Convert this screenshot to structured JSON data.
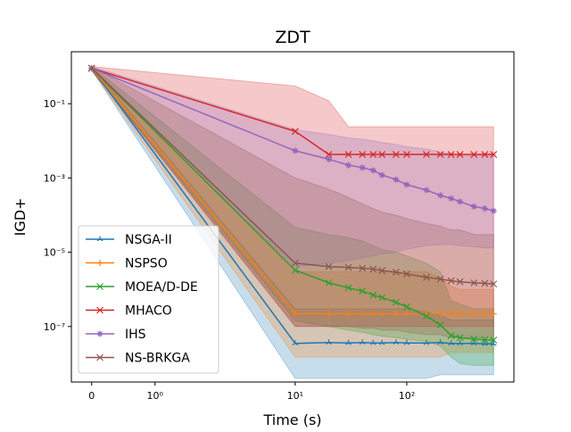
{
  "chart_data": {
    "type": "line",
    "title": "ZDT",
    "x_label": "Time (s)",
    "y_label": "IGD+",
    "x": [
      0,
      10,
      20,
      30,
      40,
      50,
      60,
      80,
      100,
      150,
      200,
      250,
      300,
      400,
      500,
      600
    ],
    "xscale": "symlog",
    "yscale": "log",
    "xlim": [
      -0.32,
      912
    ],
    "ylim": [
      3.2e-09,
      2.5
    ],
    "xticks": [
      0,
      {
        "value": 1,
        "label": "10⁰"
      },
      {
        "value": 10,
        "label": "10¹"
      },
      {
        "value": 100,
        "label": "10²"
      }
    ],
    "yticks": [
      {
        "value": 0.1,
        "label": "10⁻¹"
      },
      {
        "value": 0.001,
        "label": "10⁻³"
      },
      {
        "value": 1e-05,
        "label": "10⁻⁵"
      },
      {
        "value": 1e-07,
        "label": "10⁻⁷"
      }
    ],
    "legend": "lower left",
    "series": [
      {
        "name": "NSGA-II",
        "color": "#1f77b4",
        "marker": "tri",
        "values": [
          0.9,
          3.5e-08,
          3.7e-08,
          3.6e-08,
          3.7e-08,
          3.6e-08,
          3.6e-08,
          3.7e-08,
          3.6e-08,
          3.6e-08,
          3.7e-08,
          3.5e-08,
          3.5e-08,
          3.5e-08,
          3.4e-08,
          3.4e-08
        ],
        "lower": [
          0.8,
          4e-09,
          4e-09,
          4e-09,
          4e-09,
          4e-09,
          4e-09,
          4e-09,
          4e-09,
          4e-09,
          5e-09,
          5e-09,
          5e-09,
          5e-09,
          5e-09,
          5e-09
        ],
        "upper": [
          1.0,
          3e-07,
          3e-07,
          3e-07,
          3e-07,
          3e-07,
          3e-07,
          3e-07,
          3e-07,
          2.5e-07,
          2e-07,
          1.5e-07,
          1.5e-07,
          1.5e-07,
          1.5e-07,
          1.5e-07
        ]
      },
      {
        "name": "NSPSO",
        "color": "#ff7f0e",
        "marker": "plus",
        "values": [
          0.9,
          2.2e-07,
          2.2e-07,
          2.2e-07,
          2.2e-07,
          2.2e-07,
          2.2e-07,
          2.2e-07,
          2.2e-07,
          2.2e-07,
          2.2e-07,
          2.2e-07,
          2.2e-07,
          2.2e-07,
          2.2e-07,
          2.2e-07
        ],
        "lower": [
          0.8,
          1.5e-08,
          1.5e-08,
          1.5e-08,
          1.5e-08,
          1.5e-08,
          1.5e-08,
          1.5e-08,
          1.5e-08,
          1.5e-08,
          1.5e-08,
          2e-08,
          2e-08,
          2e-08,
          2e-08,
          2e-08
        ],
        "upper": [
          1.0,
          3e-06,
          3e-06,
          3e-06,
          3e-06,
          3e-06,
          3e-06,
          3e-06,
          3e-06,
          3e-06,
          2e-06,
          1.2e-06,
          1e-06,
          1e-06,
          1e-06,
          1e-06
        ]
      },
      {
        "name": "MOEA/D-DE",
        "color": "#2ca02c",
        "marker": "x",
        "values": [
          0.9,
          3.3e-06,
          1.5e-06,
          1.1e-06,
          9e-07,
          7e-07,
          6e-07,
          4.5e-07,
          3.4e-07,
          1.9e-07,
          1.1e-07,
          5.7e-08,
          5e-08,
          4.6e-08,
          4.4e-08,
          4.3e-08
        ],
        "lower": [
          0.8,
          1.4e-07,
          1e-07,
          8e-08,
          7e-08,
          6e-08,
          5.5e-08,
          5e-08,
          4.5e-08,
          4e-08,
          3e-08,
          1.5e-08,
          1e-08,
          9e-09,
          9e-09,
          9e-09
        ],
        "upper": [
          1.0,
          4.7e-05,
          3e-05,
          2.5e-05,
          2e-05,
          1.5e-05,
          1.2e-05,
          1e-05,
          8e-06,
          5e-06,
          3e-06,
          5e-07,
          4e-07,
          3e-07,
          3e-07,
          3e-07
        ]
      },
      {
        "name": "MHACO",
        "color": "#d62728",
        "marker": "x",
        "values": [
          0.9,
          0.018,
          0.0043,
          0.0043,
          0.0043,
          0.0043,
          0.0043,
          0.0043,
          0.0043,
          0.0043,
          0.0043,
          0.0043,
          0.0043,
          0.0043,
          0.0043,
          0.0043
        ],
        "lower": [
          0.8,
          1e-07,
          1e-07,
          1e-07,
          1e-07,
          1e-07,
          1e-07,
          1e-07,
          1e-07,
          1e-07,
          1e-07,
          1e-07,
          1e-07,
          1e-07,
          1e-07,
          1e-07
        ],
        "upper": [
          1.0,
          0.3,
          0.12,
          0.024,
          0.024,
          0.024,
          0.024,
          0.024,
          0.024,
          0.024,
          0.024,
          0.024,
          0.024,
          0.024,
          0.024,
          0.024
        ]
      },
      {
        "name": "IHS",
        "color": "#9467bd",
        "marker": "star",
        "values": [
          0.9,
          0.0054,
          0.0032,
          0.0022,
          0.0019,
          0.0016,
          0.0012,
          0.0009,
          0.00066,
          0.00047,
          0.00034,
          0.00028,
          0.00023,
          0.00017,
          0.00015,
          0.00013
        ],
        "lower": [
          0.8,
          4e-06,
          5e-06,
          6e-06,
          7e-06,
          8e-06,
          9e-06,
          1e-05,
          1.2e-05,
          1.5e-05,
          1.6e-05,
          1.6e-05,
          1.5e-05,
          1.4e-05,
          1.3e-05,
          1.3e-05
        ],
        "upper": [
          1.0,
          0.02,
          0.015,
          0.012,
          0.011,
          0.01,
          0.009,
          0.008,
          0.007,
          0.006,
          0.005,
          0.0045,
          0.004,
          0.004,
          0.004,
          0.004
        ]
      },
      {
        "name": "NS-BRKGA",
        "color": "#8c564b",
        "marker": "x",
        "values": [
          0.9,
          5.1e-06,
          4.1e-06,
          3.9e-06,
          3.7e-06,
          3.5e-06,
          3.2e-06,
          2.9e-06,
          2.6e-06,
          2.1e-06,
          1.9e-06,
          1.7e-06,
          1.6e-06,
          1.5e-06,
          1.45e-06,
          1.4e-06
        ],
        "lower": [
          0.8,
          1e-07,
          1e-07,
          1e-07,
          9e-08,
          9e-08,
          8e-08,
          8e-08,
          7e-08,
          6e-08,
          6e-08,
          5e-08,
          5e-08,
          5e-08,
          5e-08,
          5e-08
        ],
        "upper": [
          1.0,
          0.001,
          0.0005,
          0.0003,
          0.0002,
          0.00015,
          0.00012,
          0.0001,
          8e-05,
          6e-05,
          5e-05,
          4e-05,
          4e-05,
          3e-05,
          3e-05,
          3e-05
        ]
      }
    ]
  }
}
